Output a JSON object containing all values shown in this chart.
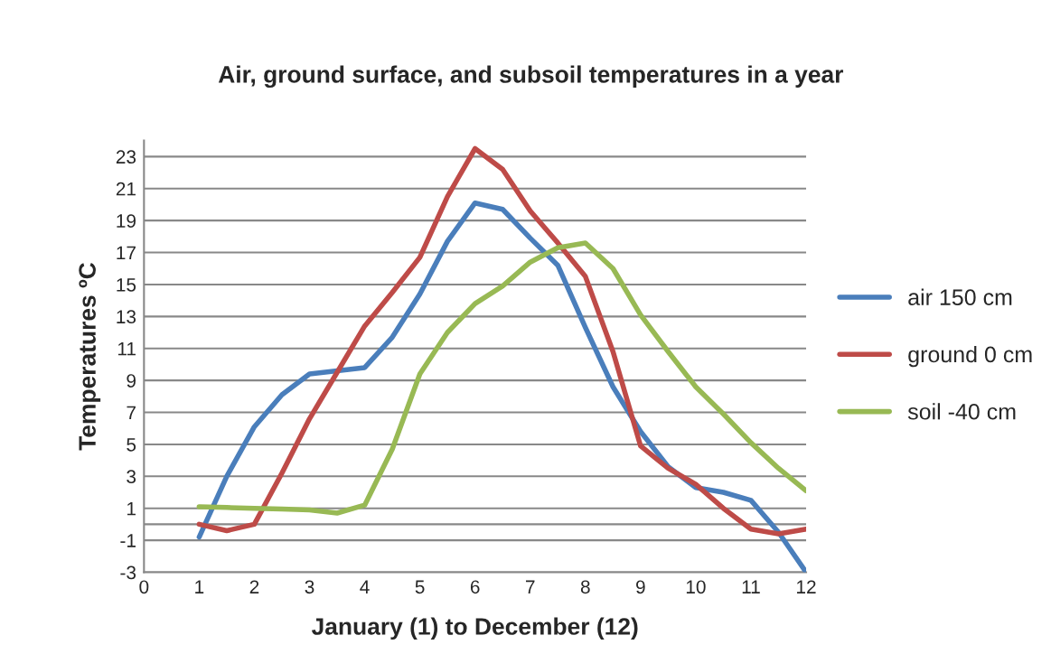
{
  "chart_data": {
    "type": "line",
    "title": "Air, ground surface, and subsoil temperatures in a year",
    "xlabel": "January (1) to December (12)",
    "ylabel": "Temperatures ºC",
    "x": [
      1,
      1.5,
      2,
      2.5,
      3,
      3.5,
      4,
      4.5,
      5,
      5.5,
      6,
      6.5,
      7,
      7.5,
      8,
      8.5,
      9,
      9.5,
      10,
      10.5,
      11,
      11.5,
      12
    ],
    "series": [
      {
        "name": "air 150 cm",
        "color": "#4a7ebb",
        "values": [
          -0.8,
          3.0,
          6.1,
          8.1,
          9.4,
          9.6,
          9.8,
          11.7,
          14.4,
          17.7,
          20.1,
          19.7,
          17.9,
          16.2,
          12.3,
          8.6,
          5.8,
          3.6,
          2.3,
          2.0,
          1.5,
          -0.5,
          -3
        ]
      },
      {
        "name": "ground 0 cm",
        "color": "#be4b48",
        "values": [
          0,
          -0.4,
          0,
          3.2,
          6.6,
          9.5,
          12.4,
          14.5,
          16.7,
          20.5,
          23.5,
          22.2,
          19.6,
          17.6,
          15.5,
          10.8,
          4.9,
          3.5,
          2.5,
          1.0,
          -0.3,
          -0.6,
          -0.3
        ]
      },
      {
        "name": "soil -40 cm",
        "color": "#98b954",
        "values": [
          1.1,
          1.05,
          1.0,
          0.95,
          0.9,
          0.7,
          1.2,
          4.7,
          9.4,
          12.0,
          13.8,
          14.9,
          16.4,
          17.3,
          17.6,
          16.0,
          13.1,
          10.8,
          8.6,
          6.9,
          5.1,
          3.5,
          2.1
        ]
      }
    ],
    "xlim": [
      0,
      12
    ],
    "xticks": [
      0,
      1,
      2,
      3,
      4,
      5,
      6,
      7,
      8,
      9,
      10,
      11,
      12
    ],
    "ylim": [
      -3,
      24
    ],
    "yticks": [
      -3,
      -1,
      1,
      3,
      5,
      7,
      9,
      11,
      13,
      15,
      17,
      19,
      21,
      23
    ],
    "ref_lines": [
      {
        "axis": "y",
        "value": 0,
        "color": "#888888"
      }
    ],
    "grid": "y",
    "legend": "right",
    "marker": "none",
    "line_style": "solid"
  }
}
